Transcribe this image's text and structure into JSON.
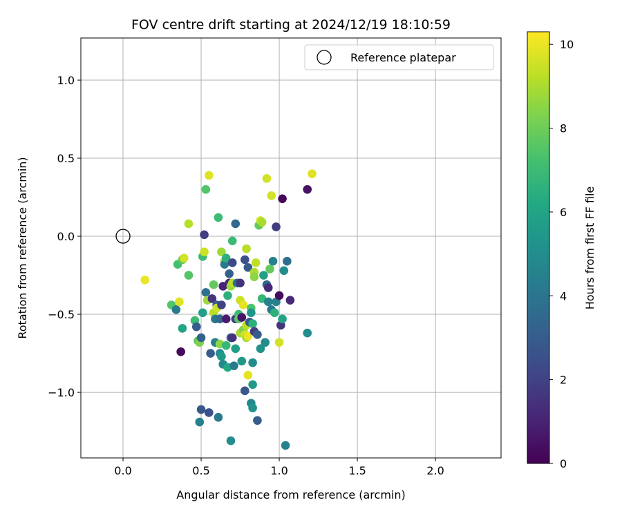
{
  "chart_data": {
    "type": "scatter",
    "title": "FOV centre drift starting at 2024/12/19 18:10:59",
    "xlabel": "Angular distance from reference (arcmin)",
    "ylabel": "Rotation from reference (arcmin)",
    "xlim": [
      -0.27,
      2.42
    ],
    "ylim": [
      -1.42,
      1.27
    ],
    "xticks": [
      0.0,
      0.5,
      1.0,
      1.5,
      2.0
    ],
    "xtick_labels": [
      "0.0",
      "0.5",
      "1.0",
      "1.5",
      "2.0"
    ],
    "yticks": [
      -1.0,
      -0.5,
      0.0,
      0.5,
      1.0
    ],
    "ytick_labels": [
      "−1.0",
      "−0.5",
      "0.0",
      "0.5",
      "1.0"
    ],
    "grid": true,
    "legend": {
      "label": "Reference platepar",
      "position": "top-right"
    },
    "reference_point": {
      "x": 0.0,
      "y": 0.0
    },
    "colorbar": {
      "label": "Hours from first FF file",
      "range": [
        0,
        10.3
      ],
      "ticks": [
        0,
        2,
        4,
        6,
        8,
        10
      ],
      "tick_labels": [
        "0",
        "2",
        "4",
        "6",
        "8",
        "10"
      ],
      "colormap": "viridis"
    },
    "points": [
      {
        "x": 0.14,
        "y": -0.28,
        "c": 10.0
      },
      {
        "x": 0.31,
        "y": -0.44,
        "c": 7.5
      },
      {
        "x": 0.34,
        "y": -0.47,
        "c": 4.3
      },
      {
        "x": 0.35,
        "y": -0.18,
        "c": 7.2
      },
      {
        "x": 0.36,
        "y": -0.42,
        "c": 9.8
      },
      {
        "x": 0.37,
        "y": -0.74,
        "c": 0.2
      },
      {
        "x": 0.38,
        "y": -0.15,
        "c": 7.8
      },
      {
        "x": 0.38,
        "y": -0.59,
        "c": 6.0
      },
      {
        "x": 0.39,
        "y": -0.14,
        "c": 9.6
      },
      {
        "x": 0.42,
        "y": 0.08,
        "c": 9.2
      },
      {
        "x": 0.42,
        "y": -0.25,
        "c": 7.5
      },
      {
        "x": 0.46,
        "y": -0.54,
        "c": 7.0
      },
      {
        "x": 0.47,
        "y": -0.58,
        "c": 3.0
      },
      {
        "x": 0.48,
        "y": -0.67,
        "c": 7.6
      },
      {
        "x": 0.49,
        "y": -0.68,
        "c": 8.3
      },
      {
        "x": 0.49,
        "y": -1.19,
        "c": 4.5
      },
      {
        "x": 0.5,
        "y": -1.11,
        "c": 2.8
      },
      {
        "x": 0.5,
        "y": -0.65,
        "c": 3.2
      },
      {
        "x": 0.51,
        "y": -0.49,
        "c": 5.8
      },
      {
        "x": 0.51,
        "y": -0.13,
        "c": 7.0
      },
      {
        "x": 0.52,
        "y": -0.1,
        "c": 9.5
      },
      {
        "x": 0.52,
        "y": 0.01,
        "c": 1.8
      },
      {
        "x": 0.53,
        "y": -0.36,
        "c": 3.8
      },
      {
        "x": 0.53,
        "y": 0.3,
        "c": 7.5
      },
      {
        "x": 0.54,
        "y": -0.41,
        "c": 8.8
      },
      {
        "x": 0.55,
        "y": 0.39,
        "c": 9.8
      },
      {
        "x": 0.55,
        "y": -1.13,
        "c": 2.5
      },
      {
        "x": 0.56,
        "y": -0.75,
        "c": 3.0
      },
      {
        "x": 0.57,
        "y": -0.4,
        "c": 1.5
      },
      {
        "x": 0.58,
        "y": -0.31,
        "c": 7.8
      },
      {
        "x": 0.58,
        "y": -0.49,
        "c": 9.2
      },
      {
        "x": 0.59,
        "y": -0.53,
        "c": 4.0
      },
      {
        "x": 0.59,
        "y": -0.68,
        "c": 4.5
      },
      {
        "x": 0.6,
        "y": -0.44,
        "c": 3.0
      },
      {
        "x": 0.6,
        "y": -0.46,
        "c": 9.5
      },
      {
        "x": 0.61,
        "y": -1.16,
        "c": 4.2
      },
      {
        "x": 0.61,
        "y": 0.12,
        "c": 7.0
      },
      {
        "x": 0.62,
        "y": -0.69,
        "c": 8.5
      },
      {
        "x": 0.62,
        "y": -0.75,
        "c": 5.0
      },
      {
        "x": 0.62,
        "y": -0.53,
        "c": 3.6
      },
      {
        "x": 0.63,
        "y": -0.1,
        "c": 8.8
      },
      {
        "x": 0.63,
        "y": -0.77,
        "c": 5.5
      },
      {
        "x": 0.63,
        "y": -0.44,
        "c": 2.0
      },
      {
        "x": 0.64,
        "y": -0.32,
        "c": 1.0
      },
      {
        "x": 0.64,
        "y": -0.82,
        "c": 4.8
      },
      {
        "x": 0.65,
        "y": -0.16,
        "c": 9.0
      },
      {
        "x": 0.65,
        "y": -0.18,
        "c": 4.2
      },
      {
        "x": 0.66,
        "y": -0.14,
        "c": 6.5
      },
      {
        "x": 0.66,
        "y": -0.7,
        "c": 6.8
      },
      {
        "x": 0.66,
        "y": -0.53,
        "c": 0.8
      },
      {
        "x": 0.67,
        "y": -0.84,
        "c": 6.2
      },
      {
        "x": 0.67,
        "y": -0.38,
        "c": 6.5
      },
      {
        "x": 0.68,
        "y": -0.3,
        "c": 1.2
      },
      {
        "x": 0.68,
        "y": -0.24,
        "c": 3.2
      },
      {
        "x": 0.69,
        "y": -0.65,
        "c": 3.5
      },
      {
        "x": 0.69,
        "y": -0.32,
        "c": 8.8
      },
      {
        "x": 0.69,
        "y": -1.31,
        "c": 5.0
      },
      {
        "x": 0.7,
        "y": -0.03,
        "c": 7.0
      },
      {
        "x": 0.7,
        "y": -0.17,
        "c": 2.2
      },
      {
        "x": 0.7,
        "y": -0.65,
        "c": 1.5
      },
      {
        "x": 0.7,
        "y": -0.3,
        "c": 9.2
      },
      {
        "x": 0.71,
        "y": -0.83,
        "c": 4.2
      },
      {
        "x": 0.72,
        "y": 0.08,
        "c": 3.5
      },
      {
        "x": 0.72,
        "y": -0.72,
        "c": 5.8
      },
      {
        "x": 0.72,
        "y": -0.53,
        "c": 1.8
      },
      {
        "x": 0.73,
        "y": -0.3,
        "c": 3.8
      },
      {
        "x": 0.74,
        "y": -0.5,
        "c": 7.0
      },
      {
        "x": 0.74,
        "y": -0.53,
        "c": 7.6
      },
      {
        "x": 0.75,
        "y": -0.3,
        "c": 1.5
      },
      {
        "x": 0.75,
        "y": -0.41,
        "c": 9.5
      },
      {
        "x": 0.75,
        "y": -0.62,
        "c": 9.0
      },
      {
        "x": 0.76,
        "y": -0.52,
        "c": 0.6
      },
      {
        "x": 0.76,
        "y": -0.8,
        "c": 5.5
      },
      {
        "x": 0.77,
        "y": -0.44,
        "c": 9.9
      },
      {
        "x": 0.77,
        "y": -0.6,
        "c": 8.3
      },
      {
        "x": 0.78,
        "y": -0.99,
        "c": 2.8
      },
      {
        "x": 0.78,
        "y": -0.63,
        "c": 9.6
      },
      {
        "x": 0.78,
        "y": -0.15,
        "c": 2.5
      },
      {
        "x": 0.79,
        "y": -0.08,
        "c": 9.2
      },
      {
        "x": 0.79,
        "y": -0.57,
        "c": 9.3
      },
      {
        "x": 0.79,
        "y": -0.65,
        "c": 8.9
      },
      {
        "x": 0.8,
        "y": -0.89,
        "c": 9.9
      },
      {
        "x": 0.8,
        "y": -0.2,
        "c": 2.9
      },
      {
        "x": 0.8,
        "y": -0.64,
        "c": 10.0
      },
      {
        "x": 0.81,
        "y": -0.55,
        "c": 3.0
      },
      {
        "x": 0.82,
        "y": -0.46,
        "c": 7.4
      },
      {
        "x": 0.82,
        "y": -0.49,
        "c": 5.4
      },
      {
        "x": 0.82,
        "y": -1.07,
        "c": 4.8
      },
      {
        "x": 0.83,
        "y": -0.56,
        "c": 6.5
      },
      {
        "x": 0.83,
        "y": -0.95,
        "c": 5.5
      },
      {
        "x": 0.83,
        "y": -1.1,
        "c": 5.2
      },
      {
        "x": 0.83,
        "y": -0.81,
        "c": 5.0
      },
      {
        "x": 0.84,
        "y": -0.23,
        "c": 9.0
      },
      {
        "x": 0.84,
        "y": -0.61,
        "c": 1.8
      },
      {
        "x": 0.84,
        "y": -0.26,
        "c": 8.5
      },
      {
        "x": 0.85,
        "y": -0.17,
        "c": 9.3
      },
      {
        "x": 0.86,
        "y": -0.63,
        "c": 3.0
      },
      {
        "x": 0.86,
        "y": -1.18,
        "c": 3.0
      },
      {
        "x": 0.87,
        "y": 0.07,
        "c": 7.8
      },
      {
        "x": 0.88,
        "y": 0.1,
        "c": 9.5
      },
      {
        "x": 0.88,
        "y": -0.72,
        "c": 5.2
      },
      {
        "x": 0.89,
        "y": 0.09,
        "c": 9.0
      },
      {
        "x": 0.89,
        "y": -0.4,
        "c": 6.8
      },
      {
        "x": 0.9,
        "y": -0.25,
        "c": 5.8
      },
      {
        "x": 0.91,
        "y": -0.68,
        "c": 5.0
      },
      {
        "x": 0.92,
        "y": 0.37,
        "c": 9.6
      },
      {
        "x": 0.92,
        "y": -0.31,
        "c": 3.3
      },
      {
        "x": 0.93,
        "y": -0.33,
        "c": 1.2
      },
      {
        "x": 0.93,
        "y": -0.42,
        "c": 4.5
      },
      {
        "x": 0.94,
        "y": -0.21,
        "c": 7.8
      },
      {
        "x": 0.95,
        "y": 0.26,
        "c": 9.6
      },
      {
        "x": 0.95,
        "y": -0.47,
        "c": 4.1
      },
      {
        "x": 0.96,
        "y": -0.16,
        "c": 4.5
      },
      {
        "x": 0.97,
        "y": -0.49,
        "c": 6.5
      },
      {
        "x": 0.98,
        "y": 0.06,
        "c": 1.8
      },
      {
        "x": 0.98,
        "y": -0.42,
        "c": 4.5
      },
      {
        "x": 1.0,
        "y": -0.68,
        "c": 9.6
      },
      {
        "x": 1.0,
        "y": -0.38,
        "c": 0.3
      },
      {
        "x": 1.01,
        "y": -0.57,
        "c": 1.5
      },
      {
        "x": 1.02,
        "y": 0.24,
        "c": 0.2
      },
      {
        "x": 1.02,
        "y": -0.53,
        "c": 6.0
      },
      {
        "x": 1.03,
        "y": -0.22,
        "c": 5.0
      },
      {
        "x": 1.04,
        "y": -1.34,
        "c": 4.5
      },
      {
        "x": 1.05,
        "y": -0.16,
        "c": 3.8
      },
      {
        "x": 1.07,
        "y": -0.41,
        "c": 1.2
      },
      {
        "x": 1.18,
        "y": 0.3,
        "c": 0.5
      },
      {
        "x": 1.18,
        "y": -0.62,
        "c": 5.0
      },
      {
        "x": 1.21,
        "y": 0.4,
        "c": 9.8
      }
    ]
  }
}
